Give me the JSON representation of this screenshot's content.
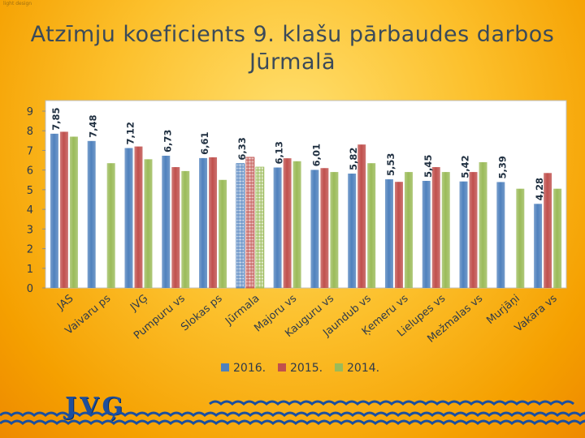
{
  "title": {
    "line1": "Atzīmju koeficients 9. klašu pārbaudes darbos",
    "line2": "Jūrmalā"
  },
  "corner_text": "light design",
  "logo_text": "JVĢ",
  "colors": {
    "s2016": "#4f81bd",
    "s2015": "#c0504d",
    "s2014": "#9bbb59",
    "plot_bg": "#ffffff",
    "grid": "#d9d9d9",
    "wave": "#1a4fa0"
  },
  "chart_data": {
    "type": "bar",
    "title": "",
    "xlabel": "",
    "ylabel": "",
    "ylim": [
      0,
      9
    ],
    "yticks": [
      0,
      1,
      2,
      3,
      4,
      5,
      6,
      7,
      8,
      9
    ],
    "grid": false,
    "legend_position": "bottom",
    "categories": [
      "JAS",
      "Vaivaru ps",
      "JVĢ",
      "Pumpuru vs",
      "Slokas ps",
      "Jūrmala",
      "Majoru vs",
      "Kauguru vs",
      "Jaundub vs",
      "Ķemeru vs",
      "Lielupes vs",
      "Mežmalas vs",
      "Murjāņi",
      "Vakara vs"
    ],
    "highlight_category": "Jūrmala",
    "series": [
      {
        "name": "2016.",
        "values": [
          7.85,
          7.48,
          7.12,
          6.73,
          6.61,
          6.33,
          6.13,
          6.01,
          5.82,
          5.53,
          5.45,
          5.42,
          5.39,
          4.28
        ],
        "labels": [
          "7,85",
          "7,48",
          "7,12",
          "6,73",
          "6,61",
          "6,33",
          "6,13",
          "6,01",
          "5,82",
          "5,53",
          "5,45",
          "5,42",
          "5,39",
          "4,28"
        ]
      },
      {
        "name": "2015.",
        "values": [
          7.95,
          null,
          7.2,
          6.15,
          6.65,
          6.65,
          6.6,
          6.1,
          7.3,
          5.4,
          6.15,
          5.9,
          null,
          5.85
        ]
      },
      {
        "name": "2014.",
        "values": [
          7.7,
          6.35,
          6.55,
          5.95,
          5.5,
          6.15,
          6.45,
          5.9,
          6.35,
          5.9,
          5.9,
          6.4,
          5.05,
          5.05
        ]
      }
    ]
  }
}
